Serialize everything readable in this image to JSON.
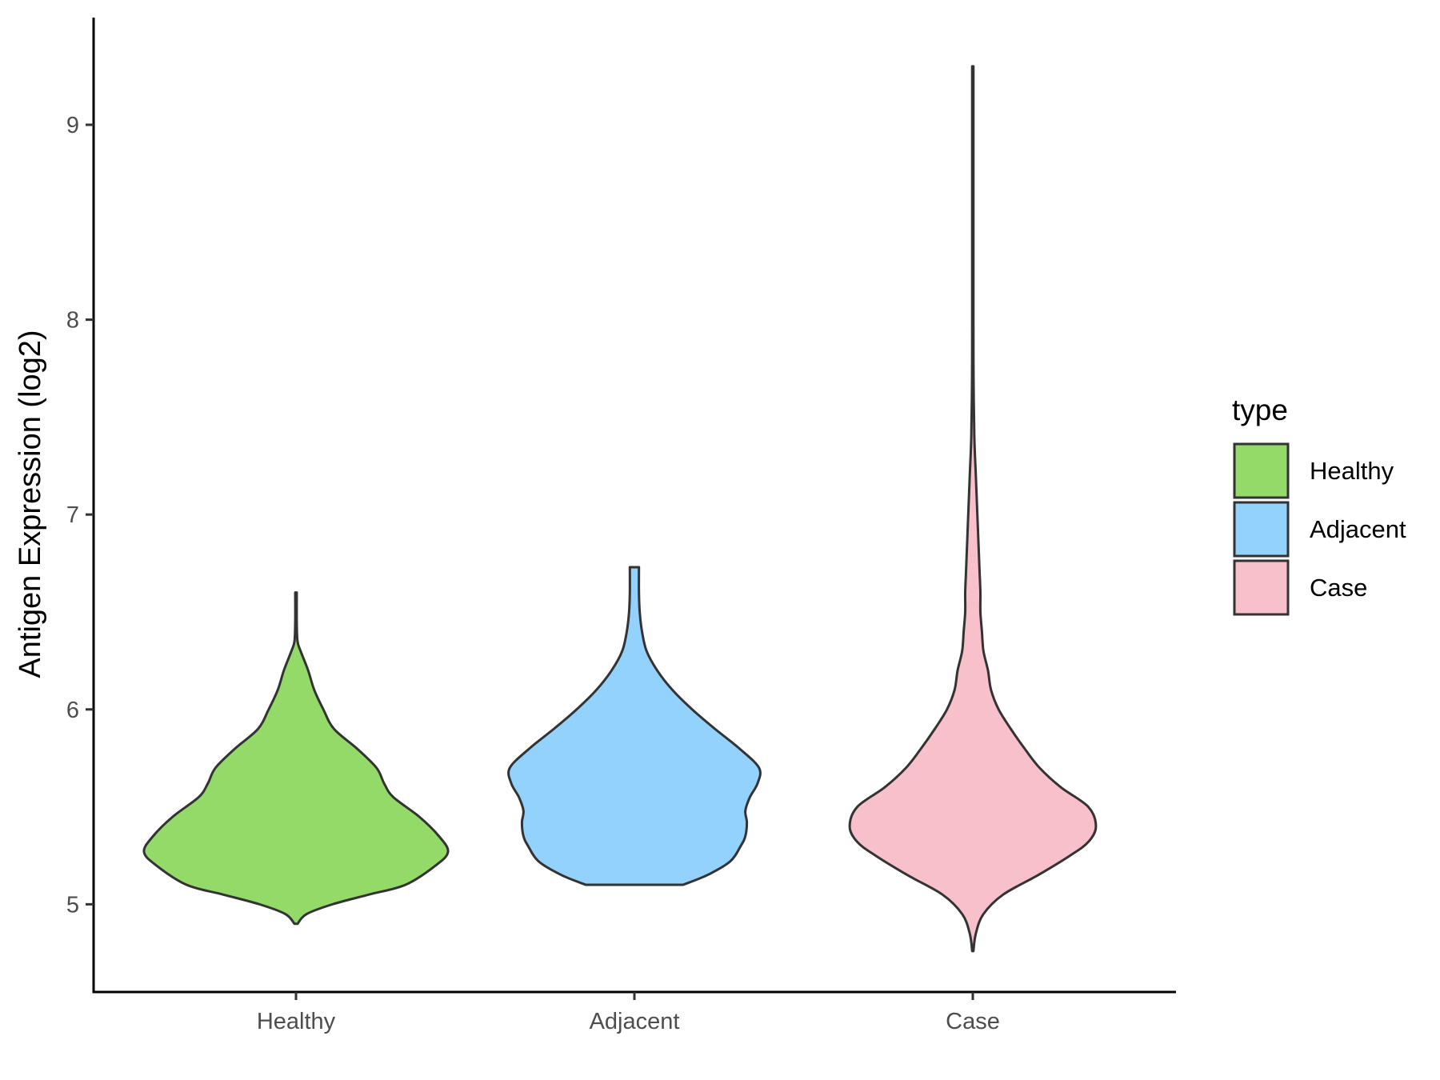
{
  "chart_data": {
    "type": "violin",
    "xlabel": "",
    "ylabel": "Antigen Expression (log2)",
    "categories": [
      "Healthy",
      "Adjacent",
      "Case"
    ],
    "ylim": [
      4.55,
      9.55
    ],
    "yticks": [
      5,
      6,
      7,
      8,
      9
    ],
    "grid": false,
    "legend": {
      "title": "type",
      "position": "right",
      "entries": [
        "Healthy",
        "Adjacent",
        "Case"
      ]
    },
    "colors": {
      "Healthy": "#93DA69",
      "Adjacent": "#92D2FD",
      "Case": "#F8C0CB",
      "outline": "#333333"
    },
    "violins": [
      {
        "name": "Healthy",
        "profile": [
          [
            4.9,
            0.01
          ],
          [
            4.95,
            0.07
          ],
          [
            5.0,
            0.24
          ],
          [
            5.05,
            0.48
          ],
          [
            5.1,
            0.72
          ],
          [
            5.2,
            0.92
          ],
          [
            5.27,
            1.0
          ],
          [
            5.35,
            0.94
          ],
          [
            5.45,
            0.81
          ],
          [
            5.55,
            0.64
          ],
          [
            5.62,
            0.58
          ],
          [
            5.7,
            0.53
          ],
          [
            5.8,
            0.4
          ],
          [
            5.9,
            0.25
          ],
          [
            6.0,
            0.18
          ],
          [
            6.1,
            0.12
          ],
          [
            6.2,
            0.08
          ],
          [
            6.3,
            0.03
          ],
          [
            6.35,
            0.01
          ],
          [
            6.45,
            0.005
          ],
          [
            6.6,
            0.005
          ]
        ]
      },
      {
        "name": "Adjacent",
        "profile": [
          [
            5.1,
            0.32
          ],
          [
            5.15,
            0.48
          ],
          [
            5.22,
            0.63
          ],
          [
            5.3,
            0.7
          ],
          [
            5.35,
            0.73
          ],
          [
            5.42,
            0.74
          ],
          [
            5.48,
            0.73
          ],
          [
            5.55,
            0.76
          ],
          [
            5.62,
            0.81
          ],
          [
            5.7,
            0.82
          ],
          [
            5.8,
            0.69
          ],
          [
            5.9,
            0.53
          ],
          [
            6.0,
            0.38
          ],
          [
            6.1,
            0.25
          ],
          [
            6.2,
            0.15
          ],
          [
            6.3,
            0.08
          ],
          [
            6.4,
            0.05
          ],
          [
            6.5,
            0.035
          ],
          [
            6.6,
            0.03
          ],
          [
            6.73,
            0.03
          ]
        ]
      },
      {
        "name": "Case",
        "profile": [
          [
            4.76,
            0.004
          ],
          [
            4.85,
            0.02
          ],
          [
            4.95,
            0.07
          ],
          [
            5.05,
            0.2
          ],
          [
            5.15,
            0.43
          ],
          [
            5.25,
            0.64
          ],
          [
            5.32,
            0.76
          ],
          [
            5.4,
            0.81
          ],
          [
            5.5,
            0.76
          ],
          [
            5.6,
            0.58
          ],
          [
            5.7,
            0.44
          ],
          [
            5.8,
            0.34
          ],
          [
            5.9,
            0.25
          ],
          [
            6.0,
            0.17
          ],
          [
            6.1,
            0.12
          ],
          [
            6.2,
            0.1
          ],
          [
            6.3,
            0.07
          ],
          [
            6.4,
            0.06
          ],
          [
            6.5,
            0.05
          ],
          [
            6.6,
            0.05
          ],
          [
            6.7,
            0.045
          ],
          [
            6.8,
            0.04
          ],
          [
            7.0,
            0.03
          ],
          [
            7.2,
            0.02
          ],
          [
            7.4,
            0.01
          ],
          [
            7.7,
            0.005
          ],
          [
            8.0,
            0.004
          ],
          [
            8.5,
            0.003
          ],
          [
            9.3,
            0.003
          ]
        ]
      }
    ]
  }
}
